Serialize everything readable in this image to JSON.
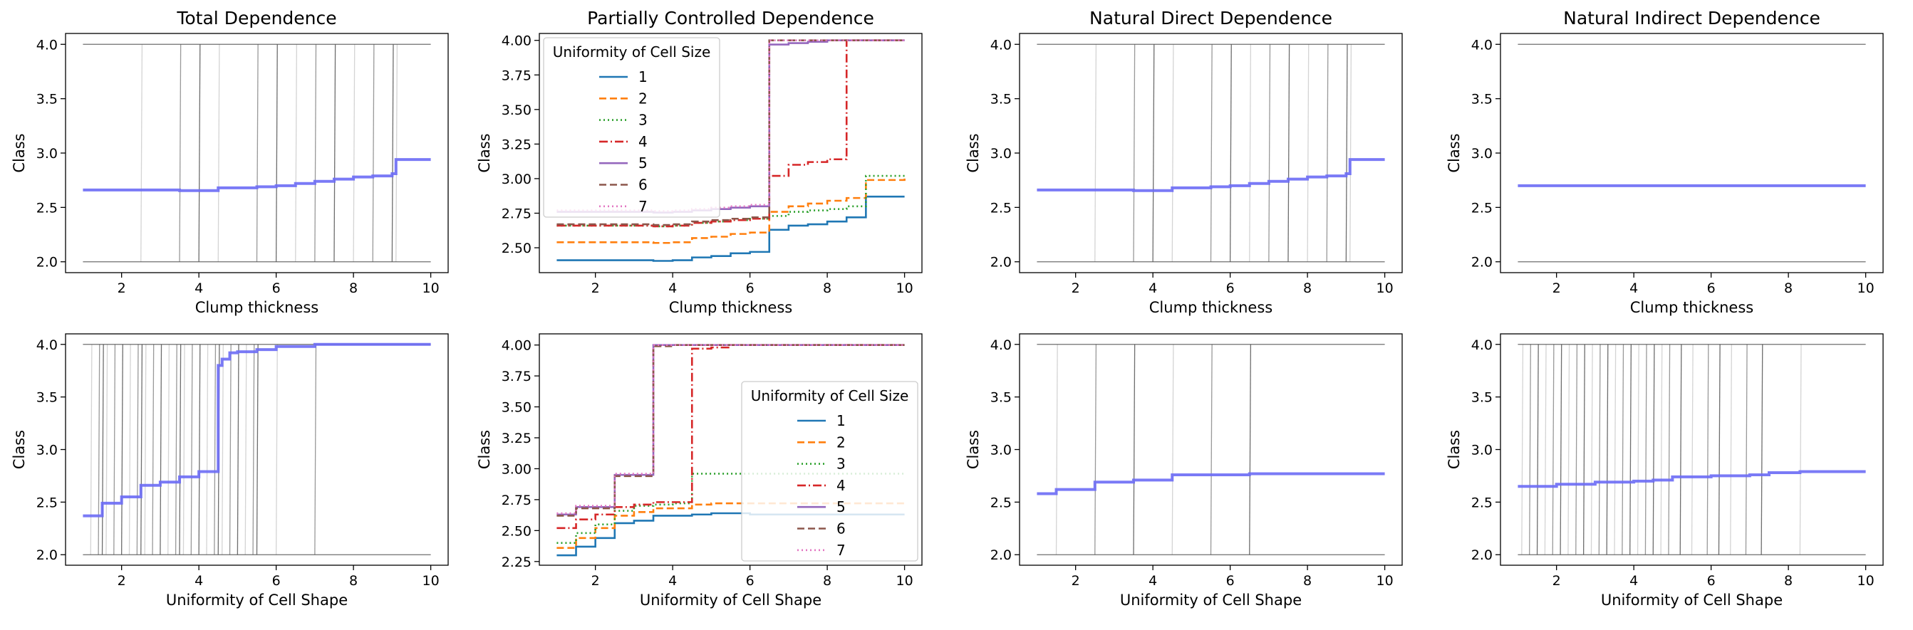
{
  "figure": {
    "col_titles": [
      "Total Dependence",
      "Partially Controlled Dependence",
      "Natural Direct Dependence",
      "Natural Indirect Dependence"
    ],
    "row_xlabels": [
      "Clump thickness",
      "Uniformity of Cell Shape"
    ],
    "ylabel": "Class",
    "legend_title": "Uniformity of Cell Size",
    "mean_line_color": "#6b6bf5",
    "ice_line_color": "#555555"
  },
  "chart_data": [
    {
      "type": "line",
      "panel": "top-1",
      "title": "Total Dependence",
      "xlabel": "Clump thickness",
      "ylabel": "Class",
      "xlim": [
        0.55,
        10.45
      ],
      "ylim": [
        1.9,
        4.1
      ],
      "xticks": [
        2,
        4,
        6,
        8,
        10
      ],
      "yticks": [
        2.0,
        2.5,
        3.0,
        3.5,
        4.0
      ],
      "ytick_labels": [
        "2.0",
        "2.5",
        "3.0",
        "3.5",
        "4.0"
      ],
      "ice_levels": [
        2.0,
        4.0
      ],
      "ice_jumps": [
        2.5,
        3.5,
        4.0,
        4.5,
        5.5,
        6.0,
        6.5,
        7.0,
        7.5,
        8.0,
        8.5,
        9.0,
        9.1
      ],
      "mean": {
        "x": [
          1,
          2.5,
          3.5,
          4.0,
          4.5,
          5.5,
          6.0,
          6.5,
          7.0,
          7.5,
          8.0,
          8.5,
          9.0,
          9.1,
          10
        ],
        "y": [
          2.66,
          2.66,
          2.655,
          2.655,
          2.68,
          2.69,
          2.7,
          2.72,
          2.74,
          2.76,
          2.78,
          2.79,
          2.81,
          2.94,
          2.94
        ]
      }
    },
    {
      "type": "line",
      "panel": "top-2",
      "title": "Partially Controlled Dependence",
      "xlabel": "Clump thickness",
      "ylabel": "Class",
      "xlim": [
        0.55,
        10.45
      ],
      "ylim": [
        2.32,
        4.05
      ],
      "xticks": [
        2,
        4,
        6,
        8,
        10
      ],
      "yticks": [
        2.5,
        2.75,
        3.0,
        3.25,
        3.5,
        3.75,
        4.0
      ],
      "ytick_labels": [
        "2.50",
        "2.75",
        "3.00",
        "3.25",
        "3.50",
        "3.75",
        "4.00"
      ],
      "legend_position": "upper-left",
      "series": [
        {
          "name": "1",
          "color": "#1f77b4",
          "dash": "",
          "x": [
            1,
            2.5,
            3.5,
            4.0,
            4.5,
            5.0,
            5.5,
            6.0,
            6.5,
            7.0,
            7.5,
            8.0,
            8.5,
            9.0,
            10
          ],
          "y": [
            2.41,
            2.41,
            2.405,
            2.41,
            2.43,
            2.44,
            2.46,
            2.47,
            2.63,
            2.66,
            2.67,
            2.69,
            2.72,
            2.87,
            2.87
          ]
        },
        {
          "name": "2",
          "color": "#ff7f0e",
          "dash": "10,5",
          "x": [
            1,
            2.5,
            3.5,
            4.0,
            4.5,
            5.0,
            5.5,
            6.0,
            6.5,
            7.0,
            7.5,
            8.0,
            8.5,
            9.0,
            10
          ],
          "y": [
            2.54,
            2.54,
            2.535,
            2.54,
            2.57,
            2.58,
            2.6,
            2.61,
            2.76,
            2.8,
            2.82,
            2.84,
            2.86,
            2.99,
            3.0
          ]
        },
        {
          "name": "3",
          "color": "#2ca02c",
          "dash": "2,4",
          "x": [
            1,
            2.5,
            3.5,
            4.0,
            4.5,
            5.0,
            5.5,
            6.0,
            6.5,
            7.0,
            7.5,
            8.0,
            8.5,
            9.0,
            10
          ],
          "y": [
            2.66,
            2.66,
            2.655,
            2.66,
            2.68,
            2.69,
            2.7,
            2.71,
            2.73,
            2.76,
            2.77,
            2.78,
            2.8,
            3.02,
            3.02
          ]
        },
        {
          "name": "4",
          "color": "#d62728",
          "dash": "12,4,2,4",
          "x": [
            1,
            2.5,
            3.5,
            4.0,
            4.5,
            5.0,
            5.5,
            6.0,
            6.5,
            7.0,
            7.5,
            8.0,
            8.5,
            9.0,
            10
          ],
          "y": [
            2.66,
            2.66,
            2.655,
            2.66,
            2.68,
            2.69,
            2.7,
            2.71,
            3.02,
            3.1,
            3.12,
            3.14,
            4.0,
            4.0,
            4.0
          ]
        },
        {
          "name": "5",
          "color": "#9467bd",
          "dash": "",
          "x": [
            1,
            2.5,
            3.5,
            4.0,
            4.5,
            5.0,
            5.5,
            6.0,
            6.5,
            7.0,
            7.5,
            8.0,
            8.5,
            9.0,
            10
          ],
          "y": [
            2.76,
            2.76,
            2.755,
            2.76,
            2.77,
            2.78,
            2.79,
            2.8,
            3.97,
            3.98,
            3.99,
            4.0,
            4.0,
            4.0,
            4.0
          ]
        },
        {
          "name": "6",
          "color": "#8c564b",
          "dash": "10,5",
          "x": [
            1,
            2.5,
            3.5,
            4.0,
            4.5,
            5.0,
            5.5,
            6.0,
            6.5,
            7.0,
            7.5,
            8.0,
            8.5,
            9.0,
            10
          ],
          "y": [
            2.67,
            2.67,
            2.665,
            2.67,
            2.69,
            2.7,
            2.71,
            2.72,
            4.0,
            4.0,
            4.0,
            4.0,
            4.0,
            4.0,
            4.0
          ]
        },
        {
          "name": "7",
          "color": "#e377c2",
          "dash": "2,4",
          "x": [
            1,
            2.5,
            3.5,
            4.0,
            4.5,
            5.0,
            5.5,
            6.0,
            6.5,
            7.0,
            7.5,
            8.0,
            8.5,
            9.0,
            10
          ],
          "y": [
            2.77,
            2.77,
            2.765,
            2.77,
            2.78,
            2.79,
            2.8,
            2.81,
            4.0,
            4.0,
            4.0,
            4.0,
            4.0,
            4.0,
            4.0
          ]
        }
      ]
    },
    {
      "type": "line",
      "panel": "top-3",
      "title": "Natural Direct Dependence",
      "xlabel": "Clump thickness",
      "ylabel": "Class",
      "xlim": [
        0.55,
        10.45
      ],
      "ylim": [
        1.9,
        4.1
      ],
      "xticks": [
        2,
        4,
        6,
        8,
        10
      ],
      "yticks": [
        2.0,
        2.5,
        3.0,
        3.5,
        4.0
      ],
      "ytick_labels": [
        "2.0",
        "2.5",
        "3.0",
        "3.5",
        "4.0"
      ],
      "ice_levels": [
        2.0,
        4.0
      ],
      "ice_jumps": [
        2.5,
        3.5,
        4.0,
        4.5,
        5.5,
        6.0,
        6.5,
        7.0,
        7.5,
        8.0,
        8.5,
        9.0,
        9.1
      ],
      "mean": {
        "x": [
          1,
          2.5,
          3.5,
          4.0,
          4.5,
          5.5,
          6.0,
          6.5,
          7.0,
          7.5,
          8.0,
          8.5,
          9.0,
          9.1,
          10
        ],
        "y": [
          2.66,
          2.66,
          2.655,
          2.655,
          2.68,
          2.69,
          2.7,
          2.72,
          2.74,
          2.76,
          2.78,
          2.79,
          2.81,
          2.94,
          2.94
        ]
      }
    },
    {
      "type": "line",
      "panel": "top-4",
      "title": "Natural Indirect Dependence",
      "xlabel": "Clump thickness",
      "ylabel": "Class",
      "xlim": [
        0.55,
        10.45
      ],
      "ylim": [
        1.9,
        4.1
      ],
      "xticks": [
        2,
        4,
        6,
        8,
        10
      ],
      "yticks": [
        2.0,
        2.5,
        3.0,
        3.5,
        4.0
      ],
      "ytick_labels": [
        "2.0",
        "2.5",
        "3.0",
        "3.5",
        "4.0"
      ],
      "ice_levels": [
        2.0,
        4.0
      ],
      "ice_jumps": [],
      "mean": {
        "x": [
          1,
          10
        ],
        "y": [
          2.7,
          2.7
        ]
      }
    },
    {
      "type": "line",
      "panel": "bottom-1",
      "xlabel": "Uniformity of Cell Shape",
      "ylabel": "Class",
      "xlim": [
        0.55,
        10.45
      ],
      "ylim": [
        1.9,
        4.1
      ],
      "xticks": [
        2,
        4,
        6,
        8,
        10
      ],
      "yticks": [
        2.0,
        2.5,
        3.0,
        3.5,
        4.0
      ],
      "ytick_labels": [
        "2.0",
        "2.5",
        "3.0",
        "3.5",
        "4.0"
      ],
      "ice_levels": [
        2.0,
        4.0
      ],
      "ice_jumps": [
        1.2,
        1.4,
        1.5,
        1.6,
        1.8,
        2.0,
        2.2,
        2.4,
        2.5,
        2.6,
        2.8,
        3.0,
        3.2,
        3.4,
        3.5,
        3.6,
        3.8,
        4.0,
        4.2,
        4.4,
        4.5,
        4.6,
        4.8,
        5.0,
        5.2,
        5.4,
        5.5,
        6.0,
        7.0
      ],
      "mean": {
        "x": [
          1,
          1.5,
          2.0,
          2.5,
          3.0,
          3.5,
          4.0,
          4.5,
          4.6,
          4.8,
          5.0,
          5.5,
          6.0,
          7.0,
          10
        ],
        "y": [
          2.37,
          2.49,
          2.55,
          2.66,
          2.69,
          2.74,
          2.79,
          3.8,
          3.86,
          3.92,
          3.93,
          3.95,
          3.98,
          4.0,
          4.0
        ]
      }
    },
    {
      "type": "line",
      "panel": "bottom-2",
      "xlabel": "Uniformity of Cell Shape",
      "ylabel": "Class",
      "xlim": [
        0.55,
        10.45
      ],
      "ylim": [
        2.22,
        4.09
      ],
      "xticks": [
        2,
        4,
        6,
        8,
        10
      ],
      "yticks": [
        2.25,
        2.5,
        2.75,
        3.0,
        3.25,
        3.5,
        3.75,
        4.0
      ],
      "ytick_labels": [
        "2.25",
        "2.50",
        "2.75",
        "3.00",
        "3.25",
        "3.50",
        "3.75",
        "4.00"
      ],
      "legend_position": "lower-right",
      "series": [
        {
          "name": "1",
          "color": "#1f77b4",
          "dash": "",
          "x": [
            1,
            1.5,
            2.0,
            2.5,
            3.0,
            3.5,
            4.0,
            4.5,
            5.0,
            5.5,
            6.0,
            7.0,
            10
          ],
          "y": [
            2.3,
            2.37,
            2.44,
            2.56,
            2.58,
            2.62,
            2.62,
            2.63,
            2.64,
            2.64,
            2.63,
            2.63,
            2.63
          ]
        },
        {
          "name": "2",
          "color": "#ff7f0e",
          "dash": "10,5",
          "x": [
            1,
            1.5,
            2.0,
            2.5,
            3.0,
            3.5,
            4.0,
            4.5,
            5.0,
            5.5,
            6.0,
            7.0,
            10
          ],
          "y": [
            2.36,
            2.44,
            2.52,
            2.62,
            2.65,
            2.68,
            2.68,
            2.71,
            2.72,
            2.72,
            2.72,
            2.72,
            2.72
          ]
        },
        {
          "name": "3",
          "color": "#2ca02c",
          "dash": "2,4",
          "x": [
            1,
            1.5,
            2.0,
            2.5,
            3.0,
            3.5,
            4.0,
            4.5,
            5.0,
            5.5,
            6.0,
            7.0,
            10
          ],
          "y": [
            2.4,
            2.48,
            2.55,
            2.66,
            2.7,
            2.71,
            2.72,
            2.96,
            2.96,
            2.96,
            2.96,
            2.96,
            2.96
          ]
        },
        {
          "name": "4",
          "color": "#d62728",
          "dash": "12,4,2,4",
          "x": [
            1,
            1.5,
            2.0,
            2.5,
            3.0,
            3.5,
            4.0,
            4.5,
            5.0,
            5.5,
            6.0,
            7.0,
            10
          ],
          "y": [
            2.52,
            2.59,
            2.63,
            2.69,
            2.71,
            2.73,
            2.73,
            3.97,
            3.98,
            4.0,
            4.0,
            4.0,
            4.0
          ]
        },
        {
          "name": "5",
          "color": "#9467bd",
          "dash": "",
          "x": [
            1,
            1.5,
            2.0,
            2.5,
            3.0,
            3.5,
            4.0,
            4.5,
            5.0,
            5.5,
            6.0,
            7.0,
            10
          ],
          "y": [
            2.63,
            2.69,
            2.69,
            2.95,
            2.95,
            4.0,
            4.0,
            4.0,
            4.0,
            4.0,
            4.0,
            4.0,
            4.0
          ]
        },
        {
          "name": "6",
          "color": "#8c564b",
          "dash": "10,5",
          "x": [
            1,
            1.5,
            2.0,
            2.5,
            3.0,
            3.5,
            4.0,
            4.5,
            5.0,
            5.5,
            6.0,
            7.0,
            10
          ],
          "y": [
            2.62,
            2.68,
            2.68,
            2.94,
            2.94,
            3.99,
            4.0,
            4.0,
            4.0,
            4.0,
            4.0,
            4.0,
            4.0
          ]
        },
        {
          "name": "7",
          "color": "#e377c2",
          "dash": "2,4",
          "x": [
            1,
            1.5,
            2.0,
            2.5,
            3.0,
            3.5,
            4.0,
            4.5,
            5.0,
            5.5,
            6.0,
            7.0,
            10
          ],
          "y": [
            2.64,
            2.7,
            2.7,
            2.96,
            2.96,
            4.0,
            4.0,
            4.0,
            4.0,
            4.0,
            4.0,
            4.0,
            4.0
          ]
        }
      ]
    },
    {
      "type": "line",
      "panel": "bottom-3",
      "xlabel": "Uniformity of Cell Shape",
      "ylabel": "Class",
      "xlim": [
        0.55,
        10.45
      ],
      "ylim": [
        1.9,
        4.1
      ],
      "xticks": [
        2,
        4,
        6,
        8,
        10
      ],
      "yticks": [
        2.0,
        2.5,
        3.0,
        3.5,
        4.0
      ],
      "ytick_labels": [
        "2.0",
        "2.5",
        "3.0",
        "3.5",
        "4.0"
      ],
      "ice_levels": [
        2.0,
        4.0
      ],
      "ice_jumps": [
        1.5,
        2.5,
        3.5,
        4.5,
        5.5,
        6.5
      ],
      "mean": {
        "x": [
          1,
          1.5,
          2.5,
          3.5,
          4.5,
          5.5,
          6.5,
          10
        ],
        "y": [
          2.58,
          2.62,
          2.69,
          2.71,
          2.76,
          2.76,
          2.77,
          2.77
        ]
      }
    },
    {
      "type": "line",
      "panel": "bottom-4",
      "xlabel": "Uniformity of Cell Shape",
      "ylabel": "Class",
      "xlim": [
        0.55,
        10.45
      ],
      "ylim": [
        1.9,
        4.1
      ],
      "xticks": [
        2,
        4,
        6,
        8,
        10
      ],
      "yticks": [
        2.0,
        2.5,
        3.0,
        3.5,
        4.0
      ],
      "ytick_labels": [
        "2.0",
        "2.5",
        "3.0",
        "3.5",
        "4.0"
      ],
      "ice_levels": [
        2.0,
        4.0
      ],
      "ice_jumps": [
        1.1,
        1.3,
        1.5,
        1.7,
        1.9,
        2.1,
        2.3,
        2.5,
        2.7,
        2.9,
        3.1,
        3.3,
        3.5,
        3.7,
        3.9,
        4.1,
        4.3,
        4.5,
        4.7,
        4.9,
        5.2,
        5.5,
        5.9,
        6.2,
        6.5,
        6.9,
        7.3,
        8.3
      ],
      "mean": {
        "x": [
          1,
          2.0,
          3.0,
          4.0,
          4.5,
          5.0,
          6.0,
          7.0,
          7.5,
          8.3,
          10
        ],
        "y": [
          2.65,
          2.67,
          2.69,
          2.7,
          2.71,
          2.74,
          2.75,
          2.76,
          2.78,
          2.79,
          2.79
        ]
      }
    }
  ]
}
